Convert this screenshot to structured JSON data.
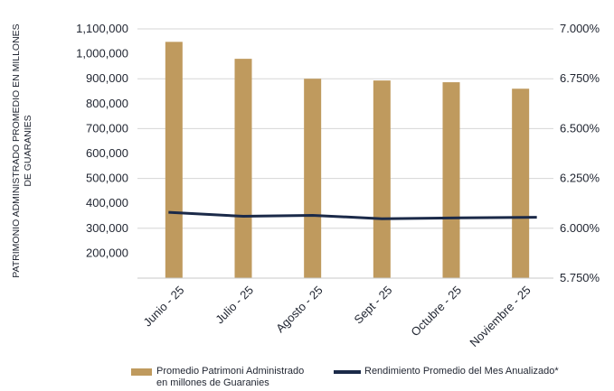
{
  "chart_data": {
    "type": "bar",
    "categories": [
      "Junio - 25",
      "Julio - 25",
      "Agosto - 25",
      "Sept - 25",
      "Octubre - 25",
      "Noviembre - 25"
    ],
    "series": [
      {
        "name": "Promedio Patrimoni Administrado en millones de Guaranies",
        "legend_lines": [
          "Promedio Patrimoni Administrado",
          "en millones de Guaranies"
        ],
        "type": "bar",
        "axis": "left",
        "color": "#bf9a5e",
        "values": [
          1048000,
          980000,
          900000,
          893000,
          886000,
          860000
        ]
      },
      {
        "name": "Rendimiento Promedio del Mes Anualizado*",
        "type": "line",
        "axis": "right",
        "color": "#1b2a49",
        "values": [
          6.08,
          6.06,
          6.065,
          6.048,
          6.052,
          6.055
        ]
      }
    ],
    "ylabel_lines": [
      "PATRIMONIO ADMINISTRADO PROMEDIO EN MILLONES",
      "DE GUARANIES"
    ],
    "y_left": {
      "lim": [
        100000,
        1100000
      ],
      "ticks": [
        200000,
        300000,
        400000,
        500000,
        600000,
        700000,
        800000,
        900000,
        1000000,
        1100000
      ],
      "tick_labels": [
        "200,000",
        "300,000",
        "400,000",
        "500,000",
        "600,000",
        "700,000",
        "800,000",
        "900,000",
        "1,000,000",
        "1,100,000"
      ]
    },
    "y_right": {
      "lim": [
        5.75,
        7.0
      ],
      "ticks": [
        5.75,
        6.0,
        6.25,
        6.5,
        6.75,
        7.0
      ],
      "tick_labels": [
        "5.750%",
        "6.000%",
        "6.250%",
        "6.500%",
        "6.750%",
        "7.000%"
      ]
    },
    "grid": true,
    "legend_position": "bottom"
  }
}
